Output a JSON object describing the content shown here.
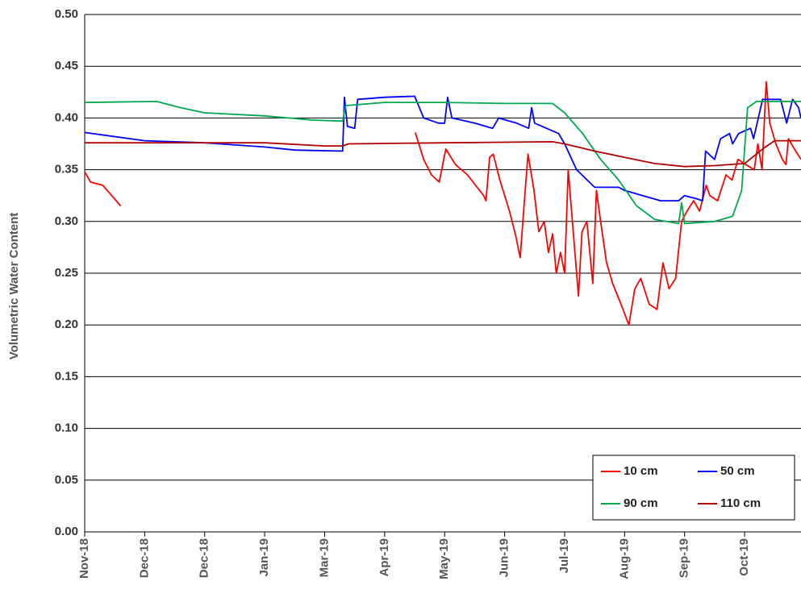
{
  "chart_data": {
    "type": "line",
    "y_label": "Volumetric Water Content",
    "xlim": [
      0,
      11.94
    ],
    "xticks": [
      {
        "value": 0,
        "label": "Nov-18"
      },
      {
        "value": 1,
        "label": "Dec-18"
      },
      {
        "value": 2,
        "label": "Dec-18"
      },
      {
        "value": 3,
        "label": "Jan-19"
      },
      {
        "value": 4,
        "label": "Mar-19"
      },
      {
        "value": 5,
        "label": "Apr-19"
      },
      {
        "value": 6,
        "label": "May-19"
      },
      {
        "value": 7,
        "label": "Jun-19"
      },
      {
        "value": 8,
        "label": "Jul-19"
      },
      {
        "value": 9,
        "label": "Aug-19"
      },
      {
        "value": 10,
        "label": "Sep-19"
      },
      {
        "value": 11,
        "label": "Oct-19"
      }
    ],
    "ylim": [
      0,
      0.5
    ],
    "yticks": [
      {
        "value": 0,
        "label": "0.00"
      },
      {
        "value": 0.05,
        "label": "0.05"
      },
      {
        "value": 0.1,
        "label": "0.10"
      },
      {
        "value": 0.15,
        "label": "0.15"
      },
      {
        "value": 0.2,
        "label": "0.20"
      },
      {
        "value": 0.25,
        "label": "0.25"
      },
      {
        "value": 0.3,
        "label": "0.30"
      },
      {
        "value": 0.35,
        "label": "0.35"
      },
      {
        "value": 0.4,
        "label": "0.40"
      },
      {
        "value": 0.45,
        "label": "0.45"
      },
      {
        "value": 0.5,
        "label": "0.50"
      }
    ],
    "grid": true,
    "legend": "lower right",
    "series": [
      {
        "name": "10 cm",
        "color": "#ff0000",
        "x": [
          0,
          0.1,
          0.3,
          0.45,
          0.6,
          3.0,
          5.51,
          5.65,
          5.78,
          5.91,
          6.02,
          6.18,
          6.38,
          6.65,
          6.69,
          6.75,
          6.81,
          6.92,
          7.08,
          7.19,
          7.26,
          7.33,
          7.39,
          7.49,
          7.57,
          7.66,
          7.73,
          7.8,
          7.86,
          7.93,
          8.0,
          8.06,
          8.13,
          8.23,
          8.29,
          8.37,
          8.47,
          8.53,
          8.6,
          8.7,
          8.8,
          8.94,
          9.07,
          9.17,
          9.27,
          9.41,
          9.54,
          9.64,
          9.74,
          9.85,
          9.95,
          10.04,
          10.15,
          10.25,
          10.36,
          10.42,
          10.55,
          10.69,
          10.79,
          10.89,
          11.02,
          11.16,
          11.22,
          11.29,
          11.36,
          11.42,
          11.52,
          11.63,
          11.69,
          11.73,
          11.83,
          11.94
        ],
        "values": [
          0.348,
          0.338,
          0.335,
          0.325,
          0.315,
          null,
          0.386,
          0.36,
          0.345,
          0.338,
          0.37,
          0.355,
          0.345,
          0.325,
          0.32,
          0.362,
          0.365,
          0.34,
          0.31,
          0.285,
          0.265,
          0.32,
          0.365,
          0.33,
          0.29,
          0.3,
          0.27,
          0.288,
          0.25,
          0.27,
          0.25,
          0.35,
          0.3,
          0.228,
          0.29,
          0.3,
          0.24,
          0.33,
          0.3,
          0.26,
          0.24,
          0.22,
          0.2,
          0.235,
          0.245,
          0.22,
          0.215,
          0.26,
          0.235,
          0.245,
          0.3,
          0.31,
          0.32,
          0.31,
          0.335,
          0.325,
          0.32,
          0.345,
          0.34,
          0.36,
          0.355,
          0.35,
          0.375,
          0.35,
          0.435,
          0.395,
          0.375,
          0.36,
          0.355,
          0.38,
          0.37,
          0.36
        ]
      },
      {
        "name": "50 cm",
        "color": "#0000ff",
        "x": [
          0,
          1.0,
          2.0,
          3.0,
          3.5,
          4.3,
          4.33,
          4.38,
          4.5,
          4.55,
          5.0,
          5.5,
          5.65,
          5.9,
          6.0,
          6.05,
          6.12,
          6.5,
          6.8,
          6.9,
          7.2,
          7.4,
          7.45,
          7.5,
          7.9,
          8.0,
          8.2,
          8.5,
          8.9,
          9.0,
          9.3,
          9.6,
          9.9,
          10.0,
          10.2,
          10.3,
          10.35,
          10.5,
          10.6,
          10.75,
          10.8,
          10.9,
          11.1,
          11.15,
          11.3,
          11.6,
          11.7,
          11.8,
          11.9,
          11.94
        ],
        "values": [
          0.386,
          0.378,
          0.376,
          0.372,
          0.369,
          0.368,
          0.42,
          0.392,
          0.39,
          0.418,
          0.42,
          0.421,
          0.4,
          0.395,
          0.395,
          0.42,
          0.4,
          0.395,
          0.39,
          0.4,
          0.395,
          0.39,
          0.41,
          0.395,
          0.385,
          0.375,
          0.35,
          0.333,
          0.333,
          0.33,
          0.325,
          0.32,
          0.32,
          0.325,
          0.322,
          0.32,
          0.368,
          0.36,
          0.38,
          0.385,
          0.375,
          0.385,
          0.39,
          0.38,
          0.418,
          0.418,
          0.395,
          0.418,
          0.41,
          0.4
        ]
      },
      {
        "name": "90 cm",
        "color": "#00a84f",
        "x": [
          0,
          1.2,
          1.6,
          2.0,
          3.0,
          3.8,
          4.3,
          4.35,
          5.0,
          6.0,
          7.0,
          7.8,
          8.0,
          8.3,
          8.6,
          8.9,
          9.2,
          9.5,
          9.9,
          9.95,
          10.0,
          10.5,
          10.8,
          10.95,
          11.05,
          11.2,
          11.94
        ],
        "values": [
          0.415,
          0.416,
          0.41,
          0.405,
          0.402,
          0.398,
          0.397,
          0.412,
          0.415,
          0.415,
          0.414,
          0.414,
          0.405,
          0.385,
          0.36,
          0.34,
          0.315,
          0.302,
          0.298,
          0.318,
          0.298,
          0.3,
          0.305,
          0.33,
          0.41,
          0.416,
          0.416
        ]
      },
      {
        "name": "110 cm",
        "color": "#b00000",
        "x": [
          0,
          3.0,
          4.0,
          4.3,
          4.4,
          6.0,
          7.8,
          8.0,
          8.5,
          9.0,
          9.5,
          10.0,
          10.5,
          11.0,
          11.3,
          11.5,
          11.94
        ],
        "values": [
          0.376,
          0.376,
          0.373,
          0.373,
          0.375,
          0.376,
          0.377,
          0.375,
          0.368,
          0.362,
          0.356,
          0.353,
          0.354,
          0.356,
          0.37,
          0.378,
          0.378
        ]
      }
    ]
  }
}
